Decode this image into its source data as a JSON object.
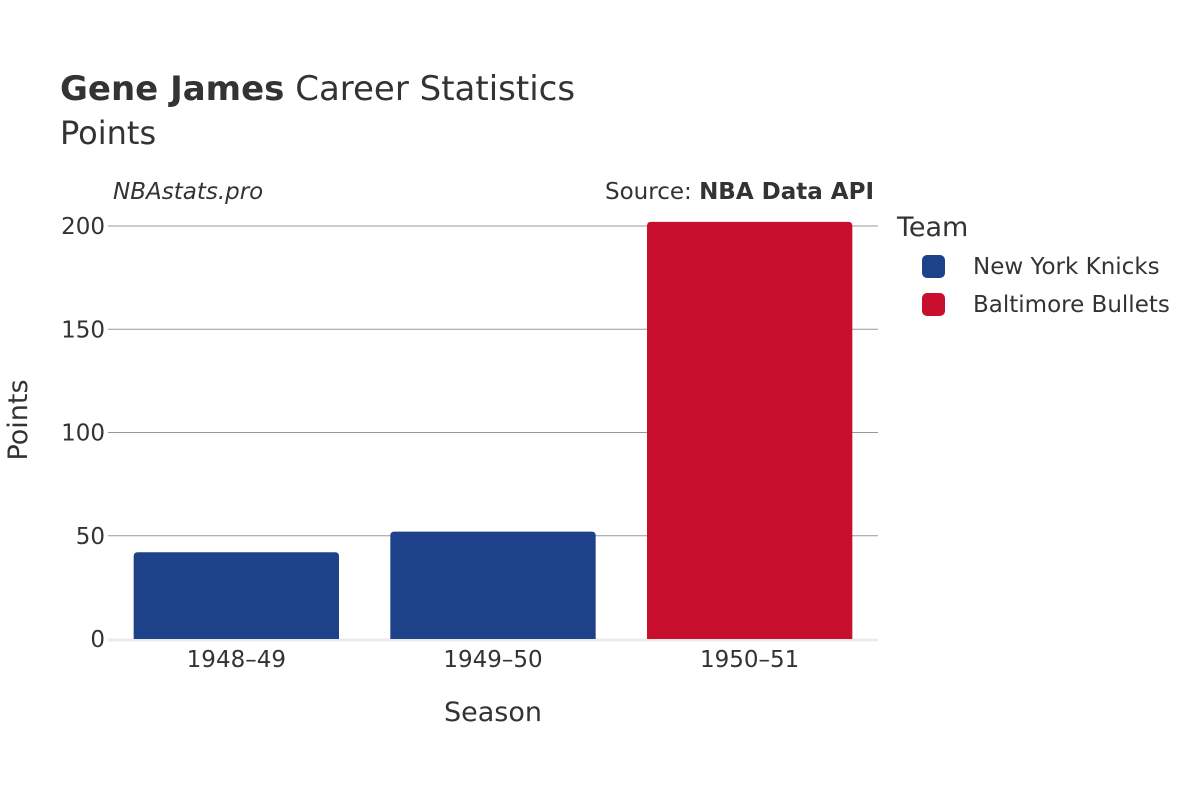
{
  "title": {
    "player": "Gene James",
    "rest": " Career Statistics",
    "subtitle": "Points"
  },
  "watermark": "NBAstats.pro",
  "source": {
    "prefix": "Source: ",
    "name": "NBA Data API"
  },
  "legend": {
    "title": "Team",
    "items": [
      {
        "label": "New York Knicks",
        "color": "#1d428a"
      },
      {
        "label": "Baltimore Bullets",
        "color": "#c8102e"
      }
    ]
  },
  "chart_data": {
    "type": "bar",
    "categories": [
      "1948–49",
      "1949–50",
      "1950–51"
    ],
    "values": [
      42,
      52,
      202
    ],
    "teams": [
      "New York Knicks",
      "New York Knicks",
      "Baltimore Bullets"
    ],
    "xlabel": "Season",
    "ylabel": "Points",
    "ylim": [
      0,
      200
    ],
    "yticks": [
      0,
      50,
      100,
      150,
      200
    ],
    "grid": true,
    "legend_position": "right"
  }
}
